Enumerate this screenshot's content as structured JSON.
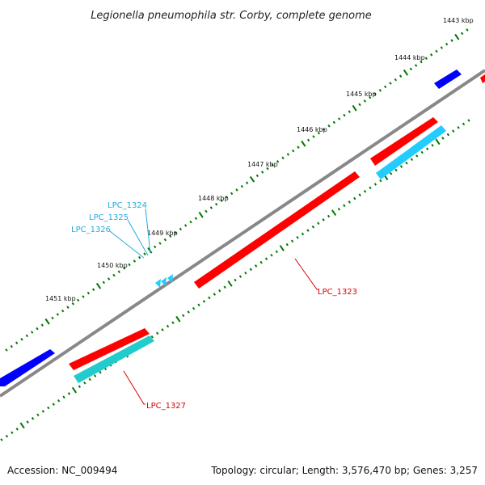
{
  "title": "Legionella pneumophila str. Corby, complete genome",
  "ticks": [
    "1443 kbp",
    "1444 kbp",
    "1445 kbp",
    "1446 kbp",
    "1447 kbp",
    "1448 kbp",
    "1449 kbp",
    "1450 kbp",
    "1451 kbp"
  ],
  "genes": [
    "LPC_1323",
    "LPC_1324",
    "LPC_1325",
    "LPC_1326",
    "LPC_1327"
  ],
  "colors": {
    "forward": "#ff0000",
    "reverse_blue": "#0000ff",
    "cds_cyan": "#22ccff",
    "cds_teal": "#22cccc",
    "backbone": "#888888",
    "label_red": "#dd0000",
    "label_cyan": "#22aadd",
    "tick_mark": "#007700"
  },
  "footer": {
    "accession": "Accession: NC_009494",
    "summary": "Topology: circular; Length: 3,576,470 bp; Genes: 3,257"
  }
}
